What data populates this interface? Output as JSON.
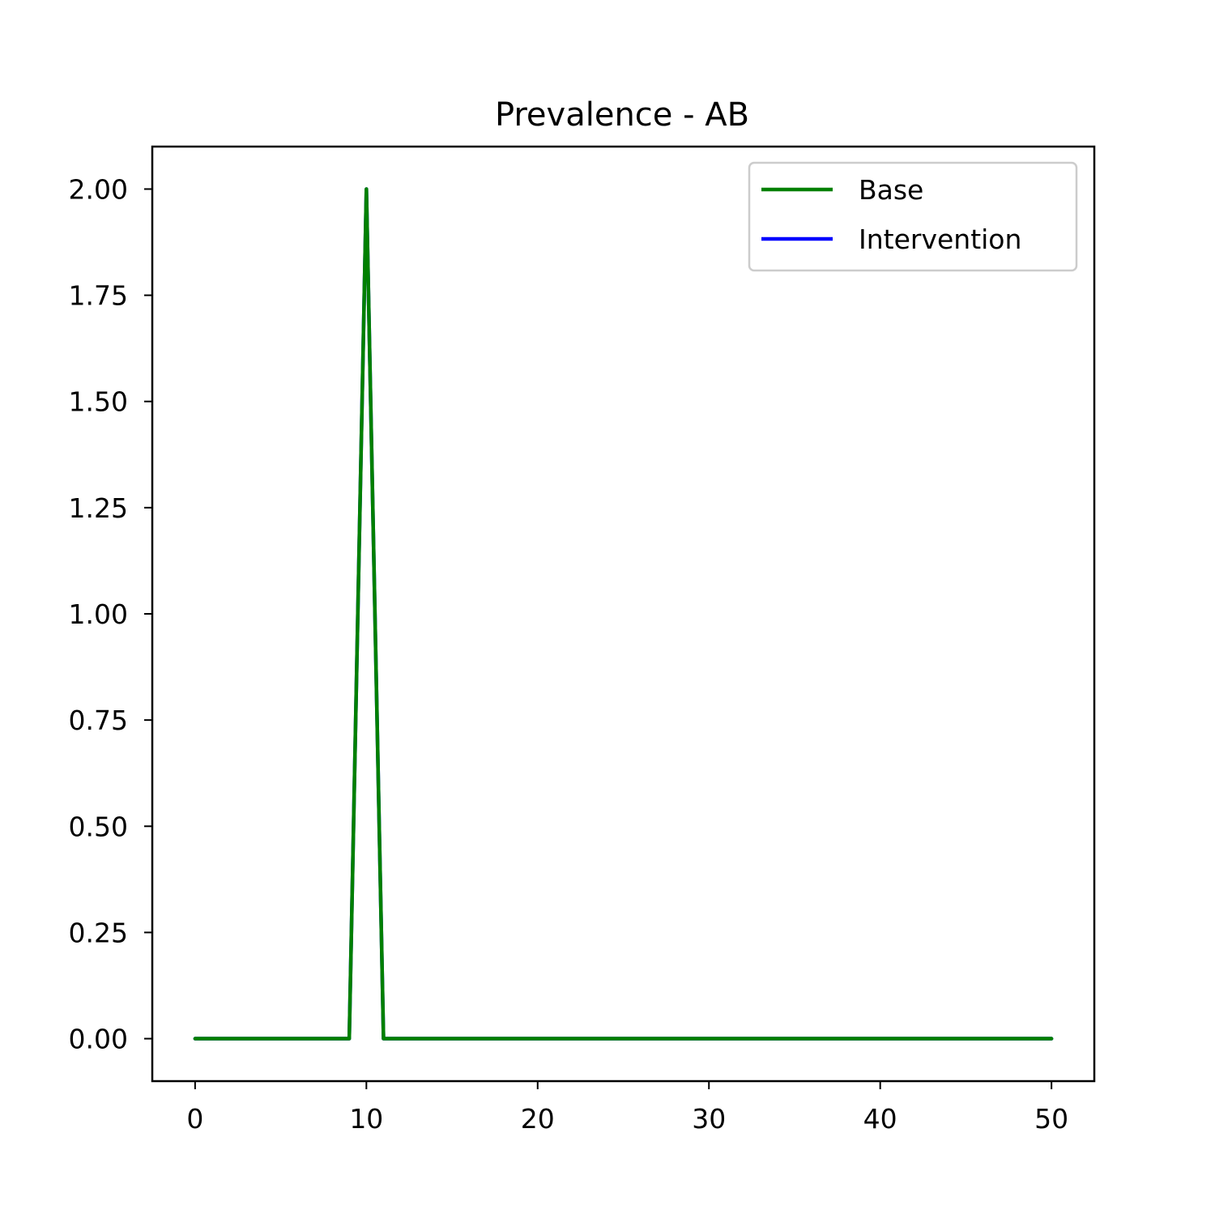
{
  "chart_data": {
    "type": "line",
    "title": "Prevalence - AB",
    "xlabel": "",
    "ylabel": "",
    "xlim": [
      -2.5,
      52.5
    ],
    "ylim": [
      -0.1,
      2.1
    ],
    "xticks": [
      0,
      10,
      20,
      30,
      40,
      50
    ],
    "xtick_labels": [
      "0",
      "10",
      "20",
      "30",
      "40",
      "50"
    ],
    "yticks": [
      0,
      0.25,
      0.5,
      0.75,
      1.0,
      1.25,
      1.5,
      1.75,
      2.0
    ],
    "ytick_labels": [
      "0.00",
      "0.25",
      "0.50",
      "0.75",
      "1.00",
      "1.25",
      "1.50",
      "1.75",
      "2.00"
    ],
    "grid": false,
    "legend_position": "top-right",
    "x": [
      0,
      1,
      2,
      3,
      4,
      5,
      6,
      7,
      8,
      9,
      10,
      11,
      12,
      13,
      14,
      15,
      16,
      17,
      18,
      19,
      20,
      21,
      22,
      23,
      24,
      25,
      26,
      27,
      28,
      29,
      30,
      31,
      32,
      33,
      34,
      35,
      36,
      37,
      38,
      39,
      40,
      41,
      42,
      43,
      44,
      45,
      46,
      47,
      48,
      49,
      50
    ],
    "series": [
      {
        "name": "Intervention",
        "color": "#0000ff",
        "values": [
          0,
          0,
          0,
          0,
          0,
          0,
          0,
          0,
          0,
          0,
          2,
          0,
          0,
          0,
          0,
          0,
          0,
          0,
          0,
          0,
          0,
          0,
          0,
          0,
          0,
          0,
          0,
          0,
          0,
          0,
          0,
          0,
          0,
          0,
          0,
          0,
          0,
          0,
          0,
          0,
          0,
          0,
          0,
          0,
          0,
          0,
          0,
          0,
          0,
          0,
          0
        ]
      },
      {
        "name": "Base",
        "color": "#008000",
        "values": [
          0,
          0,
          0,
          0,
          0,
          0,
          0,
          0,
          0,
          0,
          2,
          0,
          0,
          0,
          0,
          0,
          0,
          0,
          0,
          0,
          0,
          0,
          0,
          0,
          0,
          0,
          0,
          0,
          0,
          0,
          0,
          0,
          0,
          0,
          0,
          0,
          0,
          0,
          0,
          0,
          0,
          0,
          0,
          0,
          0,
          0,
          0,
          0,
          0,
          0,
          0
        ]
      }
    ],
    "legend": [
      {
        "name": "Base",
        "color": "#008000"
      },
      {
        "name": "Intervention",
        "color": "#0000ff"
      }
    ]
  }
}
